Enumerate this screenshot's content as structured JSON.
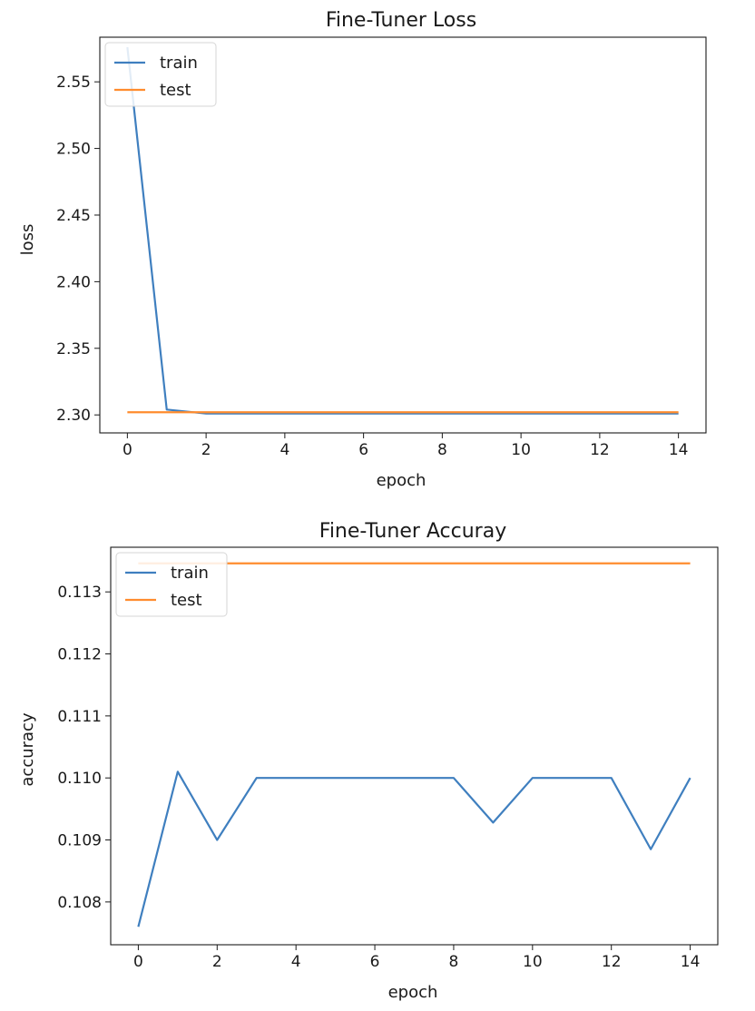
{
  "colors": {
    "train": "#3f7fbf",
    "test": "#ff8c2e",
    "axis": "#1a1a1a",
    "background": "#ffffff"
  },
  "chart_data": [
    {
      "type": "line",
      "title": "Fine-Tuner Loss",
      "xlabel": "epoch",
      "ylabel": "loss",
      "xlim": [
        -0.7,
        14.7
      ],
      "ylim": [
        2.2865,
        2.5835
      ],
      "xticks": [
        0,
        2,
        4,
        6,
        8,
        10,
        12,
        14
      ],
      "yticks": [
        2.3,
        2.35,
        2.4,
        2.45,
        2.5,
        2.55
      ],
      "ytick_labels": [
        "2.30",
        "2.35",
        "2.40",
        "2.45",
        "2.50",
        "2.55"
      ],
      "legend": {
        "placement": "upper-left",
        "entries": [
          "train",
          "test"
        ]
      },
      "grid": false,
      "x": [
        0,
        1,
        2,
        3,
        4,
        5,
        6,
        7,
        8,
        9,
        10,
        11,
        12,
        13,
        14
      ],
      "series": [
        {
          "name": "train",
          "color": "#3f7fbf",
          "values": [
            2.576,
            2.304,
            2.301,
            2.301,
            2.301,
            2.301,
            2.301,
            2.301,
            2.301,
            2.301,
            2.301,
            2.301,
            2.301,
            2.301,
            2.301
          ]
        },
        {
          "name": "test",
          "color": "#ff8c2e",
          "values": [
            2.302,
            2.302,
            2.302,
            2.302,
            2.302,
            2.302,
            2.302,
            2.302,
            2.302,
            2.302,
            2.302,
            2.302,
            2.302,
            2.302,
            2.302
          ]
        }
      ]
    },
    {
      "type": "line",
      "title": "Fine-Tuner Accuray",
      "xlabel": "epoch",
      "ylabel": "accuracy",
      "xlim": [
        -0.7,
        14.7
      ],
      "ylim": [
        0.10731,
        0.11372
      ],
      "xticks": [
        0,
        2,
        4,
        6,
        8,
        10,
        12,
        14
      ],
      "yticks": [
        0.108,
        0.109,
        0.11,
        0.111,
        0.112,
        0.113
      ],
      "ytick_labels": [
        "0.108",
        "0.109",
        "0.110",
        "0.111",
        "0.112",
        "0.113"
      ],
      "legend": {
        "placement": "upper-left",
        "entries": [
          "train",
          "test"
        ]
      },
      "grid": false,
      "x": [
        0,
        1,
        2,
        3,
        4,
        5,
        6,
        7,
        8,
        9,
        10,
        11,
        12,
        13,
        14
      ],
      "series": [
        {
          "name": "train",
          "color": "#3f7fbf",
          "values": [
            0.1076,
            0.1101,
            0.109,
            0.11,
            0.11,
            0.11,
            0.11,
            0.11,
            0.11,
            0.10928,
            0.11,
            0.11,
            0.11,
            0.10885,
            0.11
          ]
        },
        {
          "name": "test",
          "color": "#ff8c2e",
          "values": [
            0.11346,
            0.11346,
            0.11346,
            0.11346,
            0.11346,
            0.11346,
            0.11346,
            0.11346,
            0.11346,
            0.11346,
            0.11346,
            0.11346,
            0.11346,
            0.11346,
            0.11346
          ]
        }
      ]
    }
  ]
}
